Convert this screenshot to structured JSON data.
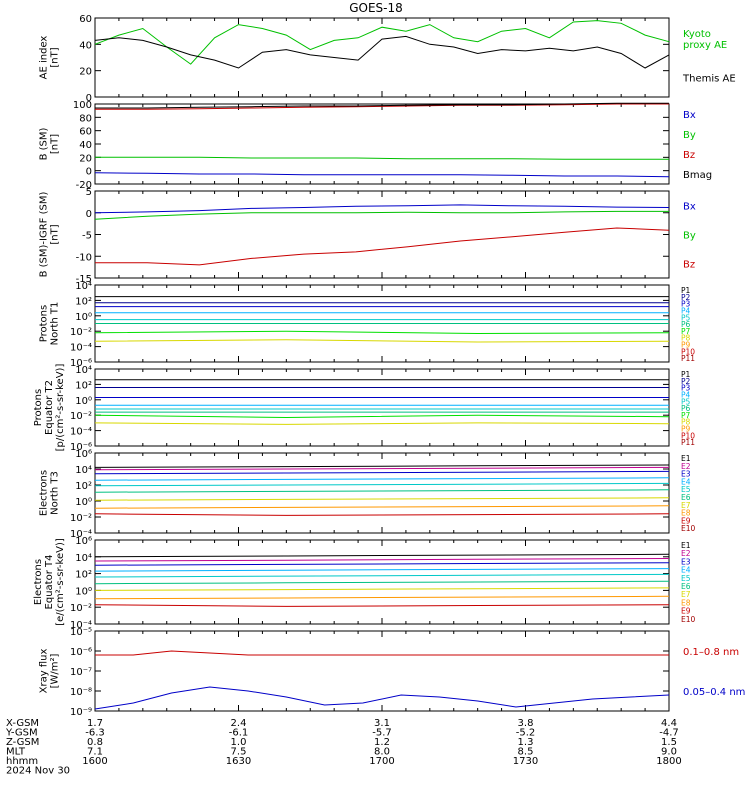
{
  "title": "GOES-18",
  "time_axis": {
    "start_label": "1600",
    "end_label": "1800"
  },
  "colors": {
    "black": "#000000",
    "green": "#00c000",
    "brightgreen": "#00e000",
    "blue": "#0000c8",
    "red": "#c80000",
    "cyan": "#00c8c8",
    "yellow": "#d8d800",
    "orange": "#ff9800",
    "darkred": "#a00000",
    "navy": "#000090",
    "skyblue": "#00b0ff",
    "seagreen": "#00c080",
    "magenta": "#c00090"
  },
  "chart_data": [
    {
      "type": "line",
      "id": "ae",
      "ylabel": "AE index [nT]",
      "ylim": [
        0,
        60
      ],
      "yticks": [
        0,
        20,
        40,
        60
      ],
      "scale": "linear",
      "x": [
        "1600",
        "1605",
        "1610",
        "1615",
        "1620",
        "1625",
        "1630",
        "1635",
        "1640",
        "1645",
        "1650",
        "1655",
        "1700",
        "1705",
        "1710",
        "1715",
        "1720",
        "1725",
        "1730",
        "1735",
        "1740",
        "1745",
        "1750",
        "1755",
        "1800"
      ],
      "series": [
        {
          "name": "Kyoto proxy AE",
          "color": "green",
          "legend_lines": [
            "Kyoto",
            "proxy AE"
          ],
          "values": [
            40,
            47,
            52,
            38,
            25,
            45,
            55,
            52,
            47,
            36,
            43,
            45,
            53,
            50,
            55,
            45,
            42,
            50,
            52,
            45,
            57,
            58,
            56,
            47,
            42
          ]
        },
        {
          "name": "Themis AE",
          "color": "black",
          "legend_lines": [
            "Themis AE"
          ],
          "values": [
            43,
            45,
            43,
            38,
            32,
            28,
            22,
            34,
            36,
            32,
            30,
            28,
            44,
            46,
            40,
            38,
            33,
            36,
            35,
            37,
            35,
            38,
            33,
            22,
            32
          ]
        }
      ]
    },
    {
      "type": "line",
      "id": "bsm",
      "ylabel": "B (SM) [nT]",
      "ylim": [
        -20,
        100
      ],
      "yticks": [
        -20,
        0,
        20,
        40,
        60,
        80,
        100
      ],
      "scale": "linear",
      "series": [
        {
          "name": "Bx",
          "color": "blue",
          "legend_lines": [
            "Bx"
          ],
          "values": [
            -3,
            -4,
            -5,
            -5,
            -6,
            -6,
            -6,
            -6,
            -7,
            -8,
            -8,
            -9
          ]
        },
        {
          "name": "By",
          "color": "green",
          "legend_lines": [
            "By"
          ],
          "values": [
            20,
            20,
            20,
            19,
            19,
            19,
            18,
            18,
            18,
            17,
            17,
            17
          ]
        },
        {
          "name": "Bz",
          "color": "red",
          "legend_lines": [
            "Bz"
          ],
          "values": [
            92,
            92,
            93,
            94,
            95,
            96,
            97,
            98,
            98,
            99,
            100,
            100
          ]
        },
        {
          "name": "Bmag",
          "color": "black",
          "legend_lines": [
            "Bmag"
          ],
          "values": [
            94,
            94,
            95,
            96,
            97,
            97,
            98,
            99,
            99,
            100,
            101,
            101
          ]
        }
      ]
    },
    {
      "type": "line",
      "id": "bigrf",
      "ylabel": "B (SM)-IGRF (SM) [nT]",
      "ylim": [
        -15,
        5
      ],
      "yticks": [
        -15,
        -10,
        -5,
        0,
        5
      ],
      "scale": "linear",
      "series": [
        {
          "name": "Bx",
          "color": "blue",
          "legend_lines": [
            "Bx"
          ],
          "values": [
            0.0,
            0.2,
            0.5,
            1.0,
            1.2,
            1.5,
            1.6,
            1.8,
            1.6,
            1.5,
            1.3,
            1.2
          ]
        },
        {
          "name": "By",
          "color": "green",
          "legend_lines": [
            "By"
          ],
          "values": [
            -1.5,
            -0.8,
            -0.3,
            0.0,
            0.0,
            0.0,
            0.1,
            0.0,
            0.0,
            0.2,
            0.3,
            0.3
          ]
        },
        {
          "name": "Bz",
          "color": "red",
          "legend_lines": [
            "Bz"
          ],
          "values": [
            -11.5,
            -11.5,
            -12.0,
            -10.5,
            -9.5,
            -9.0,
            -7.8,
            -6.5,
            -5.5,
            -4.5,
            -3.5,
            -4.0
          ]
        }
      ]
    },
    {
      "type": "line",
      "id": "protons_t1",
      "ylabel_lines": [
        "Protons",
        "North T1"
      ],
      "ylim": [
        -6,
        4
      ],
      "yticks": [
        -6,
        -4,
        -2,
        0,
        2,
        4
      ],
      "scale": "log",
      "series": [
        {
          "name": "P1",
          "color": "black",
          "values": [
            2.5,
            2.5,
            2.5,
            2.5
          ]
        },
        {
          "name": "P2",
          "color": "navy",
          "values": [
            1.7,
            1.7,
            1.7,
            1.7
          ]
        },
        {
          "name": "P3",
          "color": "blue",
          "values": [
            1.2,
            1.2,
            1.2,
            1.2
          ]
        },
        {
          "name": "P4",
          "color": "skyblue",
          "values": [
            0.4,
            0.4,
            0.4,
            0.4
          ]
        },
        {
          "name": "P5",
          "color": "cyan",
          "values": [
            -0.5,
            -0.5,
            -0.5,
            -0.5
          ]
        },
        {
          "name": "P6",
          "color": "seagreen",
          "values": [
            -1.0,
            -1.0,
            -1.0,
            -1.0
          ]
        },
        {
          "name": "P7",
          "color": "brightgreen",
          "values": [
            -2.2,
            -2.0,
            -2.3,
            -2.2
          ]
        },
        {
          "name": "P8",
          "color": "yellow",
          "values": [
            -3.3,
            -3.1,
            -3.4,
            -3.3
          ]
        },
        {
          "name": "P9",
          "color": "orange",
          "values": []
        },
        {
          "name": "P10",
          "color": "red",
          "values": []
        },
        {
          "name": "P11",
          "color": "darkred",
          "values": []
        }
      ]
    },
    {
      "type": "line",
      "id": "protons_t2",
      "ylabel_lines": [
        "Protons",
        "Equator T2",
        "[p/(cm²-s-sr-keV)]"
      ],
      "ylim": [
        -6,
        4
      ],
      "yticks": [
        -6,
        -4,
        -2,
        0,
        2,
        4
      ],
      "scale": "log",
      "series": [
        {
          "name": "P1",
          "color": "black",
          "values": [
            2.6,
            2.6,
            2.6,
            2.6
          ]
        },
        {
          "name": "P2",
          "color": "navy",
          "values": [
            1.6,
            1.6,
            1.6,
            1.6
          ]
        },
        {
          "name": "P3",
          "color": "blue",
          "values": [
            0.3,
            0.3,
            0.3,
            0.3
          ]
        },
        {
          "name": "P4",
          "color": "skyblue",
          "values": [
            -0.7,
            -0.7,
            -0.7,
            -0.7
          ]
        },
        {
          "name": "P5",
          "color": "cyan",
          "values": [
            -1.2,
            -1.2,
            -1.2,
            -1.2
          ]
        },
        {
          "name": "P6",
          "color": "seagreen",
          "values": [
            -1.6,
            -1.6,
            -1.6,
            -1.6
          ]
        },
        {
          "name": "P7",
          "color": "brightgreen",
          "values": [
            -2.0,
            -2.3,
            -2.0,
            -2.2
          ]
        },
        {
          "name": "P8",
          "color": "yellow",
          "values": [
            -3.0,
            -3.2,
            -3.0,
            -3.1
          ]
        },
        {
          "name": "P9",
          "color": "orange",
          "values": []
        },
        {
          "name": "P10",
          "color": "red",
          "values": []
        },
        {
          "name": "P11",
          "color": "darkred",
          "values": []
        }
      ]
    },
    {
      "type": "line",
      "id": "electrons_t3",
      "ylabel_lines": [
        "Electrons",
        "North T3"
      ],
      "ylim": [
        -4,
        6
      ],
      "yticks": [
        -4,
        -2,
        0,
        2,
        4,
        6
      ],
      "scale": "log",
      "series": [
        {
          "name": "E1",
          "color": "black",
          "values": [
            4.2,
            4.3,
            4.4,
            4.5
          ]
        },
        {
          "name": "E2",
          "color": "magenta",
          "values": [
            3.9,
            4.0,
            4.1,
            4.2
          ]
        },
        {
          "name": "E3",
          "color": "blue",
          "values": [
            3.4,
            3.5,
            3.6,
            3.7
          ]
        },
        {
          "name": "E4",
          "color": "skyblue",
          "values": [
            2.6,
            2.7,
            2.8,
            2.9
          ]
        },
        {
          "name": "E5",
          "color": "cyan",
          "values": [
            1.9,
            2.0,
            2.1,
            2.2
          ]
        },
        {
          "name": "E6",
          "color": "seagreen",
          "values": [
            1.1,
            1.2,
            1.3,
            1.4
          ]
        },
        {
          "name": "E7",
          "color": "yellow",
          "values": [
            0.1,
            0.2,
            0.3,
            0.4
          ]
        },
        {
          "name": "E8",
          "color": "orange",
          "values": [
            -0.9,
            -0.8,
            -0.7,
            -0.6
          ]
        },
        {
          "name": "E9",
          "color": "red",
          "values": [
            -1.6,
            -1.8,
            -1.7,
            -1.6
          ]
        },
        {
          "name": "E10",
          "color": "darkred",
          "values": []
        }
      ]
    },
    {
      "type": "line",
      "id": "electrons_t4",
      "ylabel_lines": [
        "Electrons",
        "Equator T4",
        "[e/(cm²-s-sr-keV)]"
      ],
      "ylim": [
        -4,
        6
      ],
      "yticks": [
        -4,
        -2,
        0,
        2,
        4,
        6
      ],
      "scale": "log",
      "series": [
        {
          "name": "E1",
          "color": "black",
          "values": [
            4.0,
            4.1,
            4.2,
            4.3
          ]
        },
        {
          "name": "E2",
          "color": "magenta",
          "values": [
            3.5,
            3.6,
            3.7,
            3.8
          ]
        },
        {
          "name": "E3",
          "color": "blue",
          "values": [
            3.0,
            3.1,
            3.2,
            3.3
          ]
        },
        {
          "name": "E4",
          "color": "skyblue",
          "values": [
            2.3,
            2.4,
            2.5,
            2.6
          ]
        },
        {
          "name": "E5",
          "color": "cyan",
          "values": [
            1.6,
            1.7,
            1.8,
            1.9
          ]
        },
        {
          "name": "E6",
          "color": "seagreen",
          "values": [
            0.8,
            0.9,
            1.0,
            1.1
          ]
        },
        {
          "name": "E7",
          "color": "yellow",
          "values": [
            0.0,
            0.1,
            0.2,
            0.3
          ]
        },
        {
          "name": "E8",
          "color": "orange",
          "values": [
            -1.0,
            -0.9,
            -0.8,
            -0.7
          ]
        },
        {
          "name": "E9",
          "color": "red",
          "values": [
            -1.7,
            -1.9,
            -1.8,
            -1.7
          ]
        },
        {
          "name": "E10",
          "color": "darkred",
          "values": []
        }
      ]
    },
    {
      "type": "line",
      "id": "xray",
      "ylabel_lines": [
        "Xray flux",
        "[W/m²]"
      ],
      "ylim": [
        -9,
        -5
      ],
      "yticks": [
        -9,
        -8,
        -7,
        -6,
        -5
      ],
      "scale": "log",
      "series": [
        {
          "name": "0.1-0.8 nm",
          "color": "red",
          "legend_lines": [
            "0.1–0.8 nm"
          ],
          "values": [
            -6.2,
            -6.2,
            -6.0,
            -6.1,
            -6.2,
            -6.2,
            -6.2,
            -6.2,
            -6.2,
            -6.2,
            -6.2,
            -6.2,
            -6.2,
            -6.2,
            -6.2,
            -6.2
          ]
        },
        {
          "name": "0.05-0.4 nm",
          "color": "blue",
          "legend_lines": [
            "0.05–0.4 nm"
          ],
          "values": [
            -8.9,
            -8.6,
            -8.1,
            -7.8,
            -8.0,
            -8.3,
            -8.7,
            -8.6,
            -8.2,
            -8.3,
            -8.5,
            -8.8,
            -8.6,
            -8.4,
            -8.3,
            -8.2
          ]
        }
      ]
    }
  ],
  "orbit_table": {
    "rows": [
      {
        "label": "X-GSM",
        "values": [
          "1.7",
          "2.4",
          "3.1",
          "3.8",
          "4.4"
        ]
      },
      {
        "label": "Y-GSM",
        "values": [
          "-6.3",
          "-6.1",
          "-5.7",
          "-5.2",
          "-4.7"
        ]
      },
      {
        "label": "Z-GSM",
        "values": [
          "0.8",
          "1.0",
          "1.2",
          "1.3",
          "1.5"
        ]
      },
      {
        "label": "MLT",
        "values": [
          "7.1",
          "7.5",
          "8.0",
          "8.5",
          "9.0"
        ]
      },
      {
        "label": "hhmm",
        "values": [
          "1600",
          "1630",
          "1700",
          "1730",
          "1800"
        ]
      }
    ],
    "date": "2024 Nov 30"
  }
}
